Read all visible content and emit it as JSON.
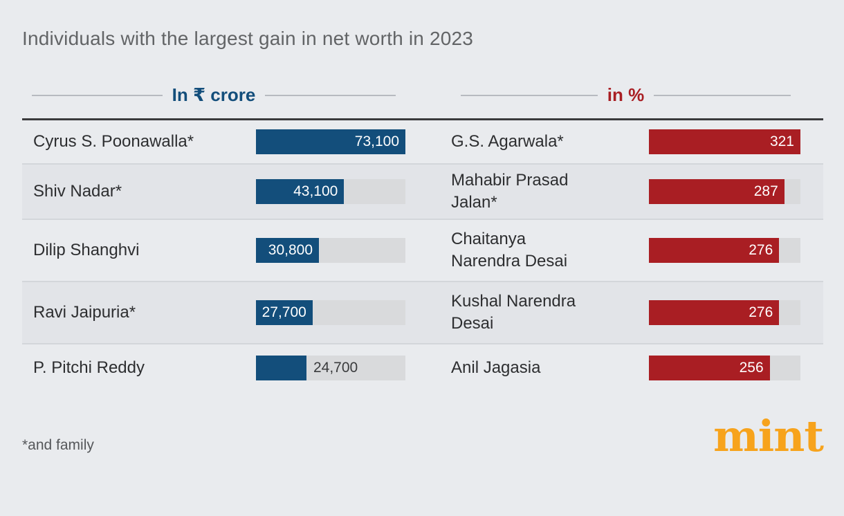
{
  "title": "Individuals with the largest gain in net worth in 2023",
  "footnote": "*and family",
  "logo_text": "mint",
  "colors": {
    "background": "#e9ebee",
    "row_alternate": "#e2e4e8",
    "row_divider": "#d3d6da",
    "top_rule": "#3a3a3c",
    "bar_track": "#d9dadc",
    "crore_blue": "#134e7b",
    "percent_red": "#a91e23",
    "logo_orange": "#f7a31c",
    "title_text": "#626466",
    "name_text": "#2d2e30"
  },
  "chart_data": [
    {
      "type": "bar",
      "orientation": "horizontal",
      "title": "In ₹ crore",
      "categories": [
        "Cyrus S. Poonawalla*",
        "Shiv Nadar*",
        "Dilip Shanghvi",
        "Ravi Jaipuria*",
        "P. Pitchi Reddy"
      ],
      "values": [
        73100,
        43100,
        30800,
        27700,
        24700
      ],
      "value_labels": [
        "73,100",
        "43,100",
        "30,800",
        "27,700",
        "24,700"
      ],
      "xlim": [
        0,
        73100
      ],
      "bar_color": "#134e7b",
      "track_color": "#d9dadc",
      "value_label_position": "inside-right, outside for smallest bar"
    },
    {
      "type": "bar",
      "orientation": "horizontal",
      "title": "in %",
      "categories": [
        "G.S. Agarwala*",
        "Mahabir Prasad Jalan*",
        "Chaitanya Narendra Desai",
        "Kushal Narendra Desai",
        "Anil Jagasia"
      ],
      "values": [
        321,
        287,
        276,
        276,
        256
      ],
      "value_labels": [
        "321",
        "287",
        "276",
        "276",
        "256"
      ],
      "xlim": [
        0,
        321
      ],
      "bar_color": "#a91e23",
      "track_color": "#d9dadc",
      "value_label_position": "inside-right"
    }
  ]
}
